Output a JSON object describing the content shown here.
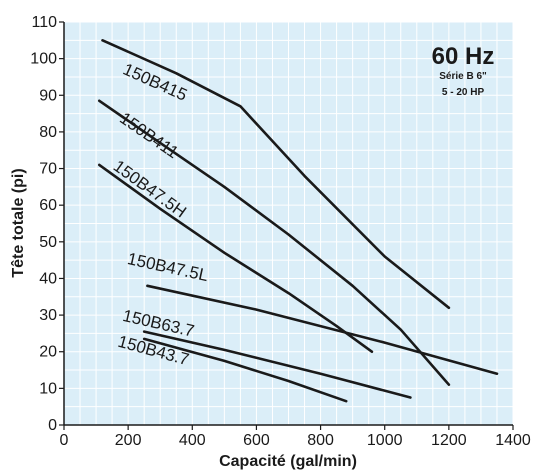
{
  "chart_data": {
    "type": "line",
    "xlabel": "Capacité (gal/min)",
    "ylabel": "Tête totale (pi)",
    "xlim": [
      0,
      1400
    ],
    "ylim": [
      0,
      110
    ],
    "xticks": [
      "0",
      "200",
      "400",
      "600",
      "800",
      "1000",
      "1200",
      "1400"
    ],
    "yticks": [
      "0",
      "10",
      "20",
      "30",
      "40",
      "50",
      "60",
      "70",
      "80",
      "90",
      "100",
      "110"
    ],
    "grid": true,
    "colors": {
      "background": "#dbeef8",
      "grid": "#ffffff",
      "line": "#1a1a1a"
    },
    "legend": {
      "placement": "top-right",
      "frequency": "60 Hz",
      "series_line": "Série B 6\"",
      "power_line": "5 - 20 HP"
    },
    "series": [
      {
        "name": "150B415",
        "x": [
          120,
          350,
          550,
          750,
          1000,
          1200
        ],
        "y": [
          105,
          96,
          87,
          68,
          46,
          32
        ]
      },
      {
        "name": "150B411",
        "x": [
          110,
          300,
          500,
          700,
          900,
          1050,
          1200
        ],
        "y": [
          88.5,
          77,
          65,
          52,
          38,
          26,
          11
        ]
      },
      {
        "name": "150B47.5H",
        "x": [
          110,
          300,
          500,
          700,
          850,
          960
        ],
        "y": [
          71,
          59,
          47,
          36,
          27,
          20
        ]
      },
      {
        "name": "150B47.5L",
        "x": [
          260,
          600,
          1000,
          1350
        ],
        "y": [
          38,
          31.5,
          22.5,
          14
        ]
      },
      {
        "name": "150B63.7",
        "x": [
          250,
          500,
          800,
          1080
        ],
        "y": [
          25.5,
          20.5,
          14,
          7.5
        ]
      },
      {
        "name": "150B43.7",
        "x": [
          250,
          500,
          700,
          880
        ],
        "y": [
          23.5,
          17.5,
          12,
          6.5
        ]
      }
    ]
  }
}
